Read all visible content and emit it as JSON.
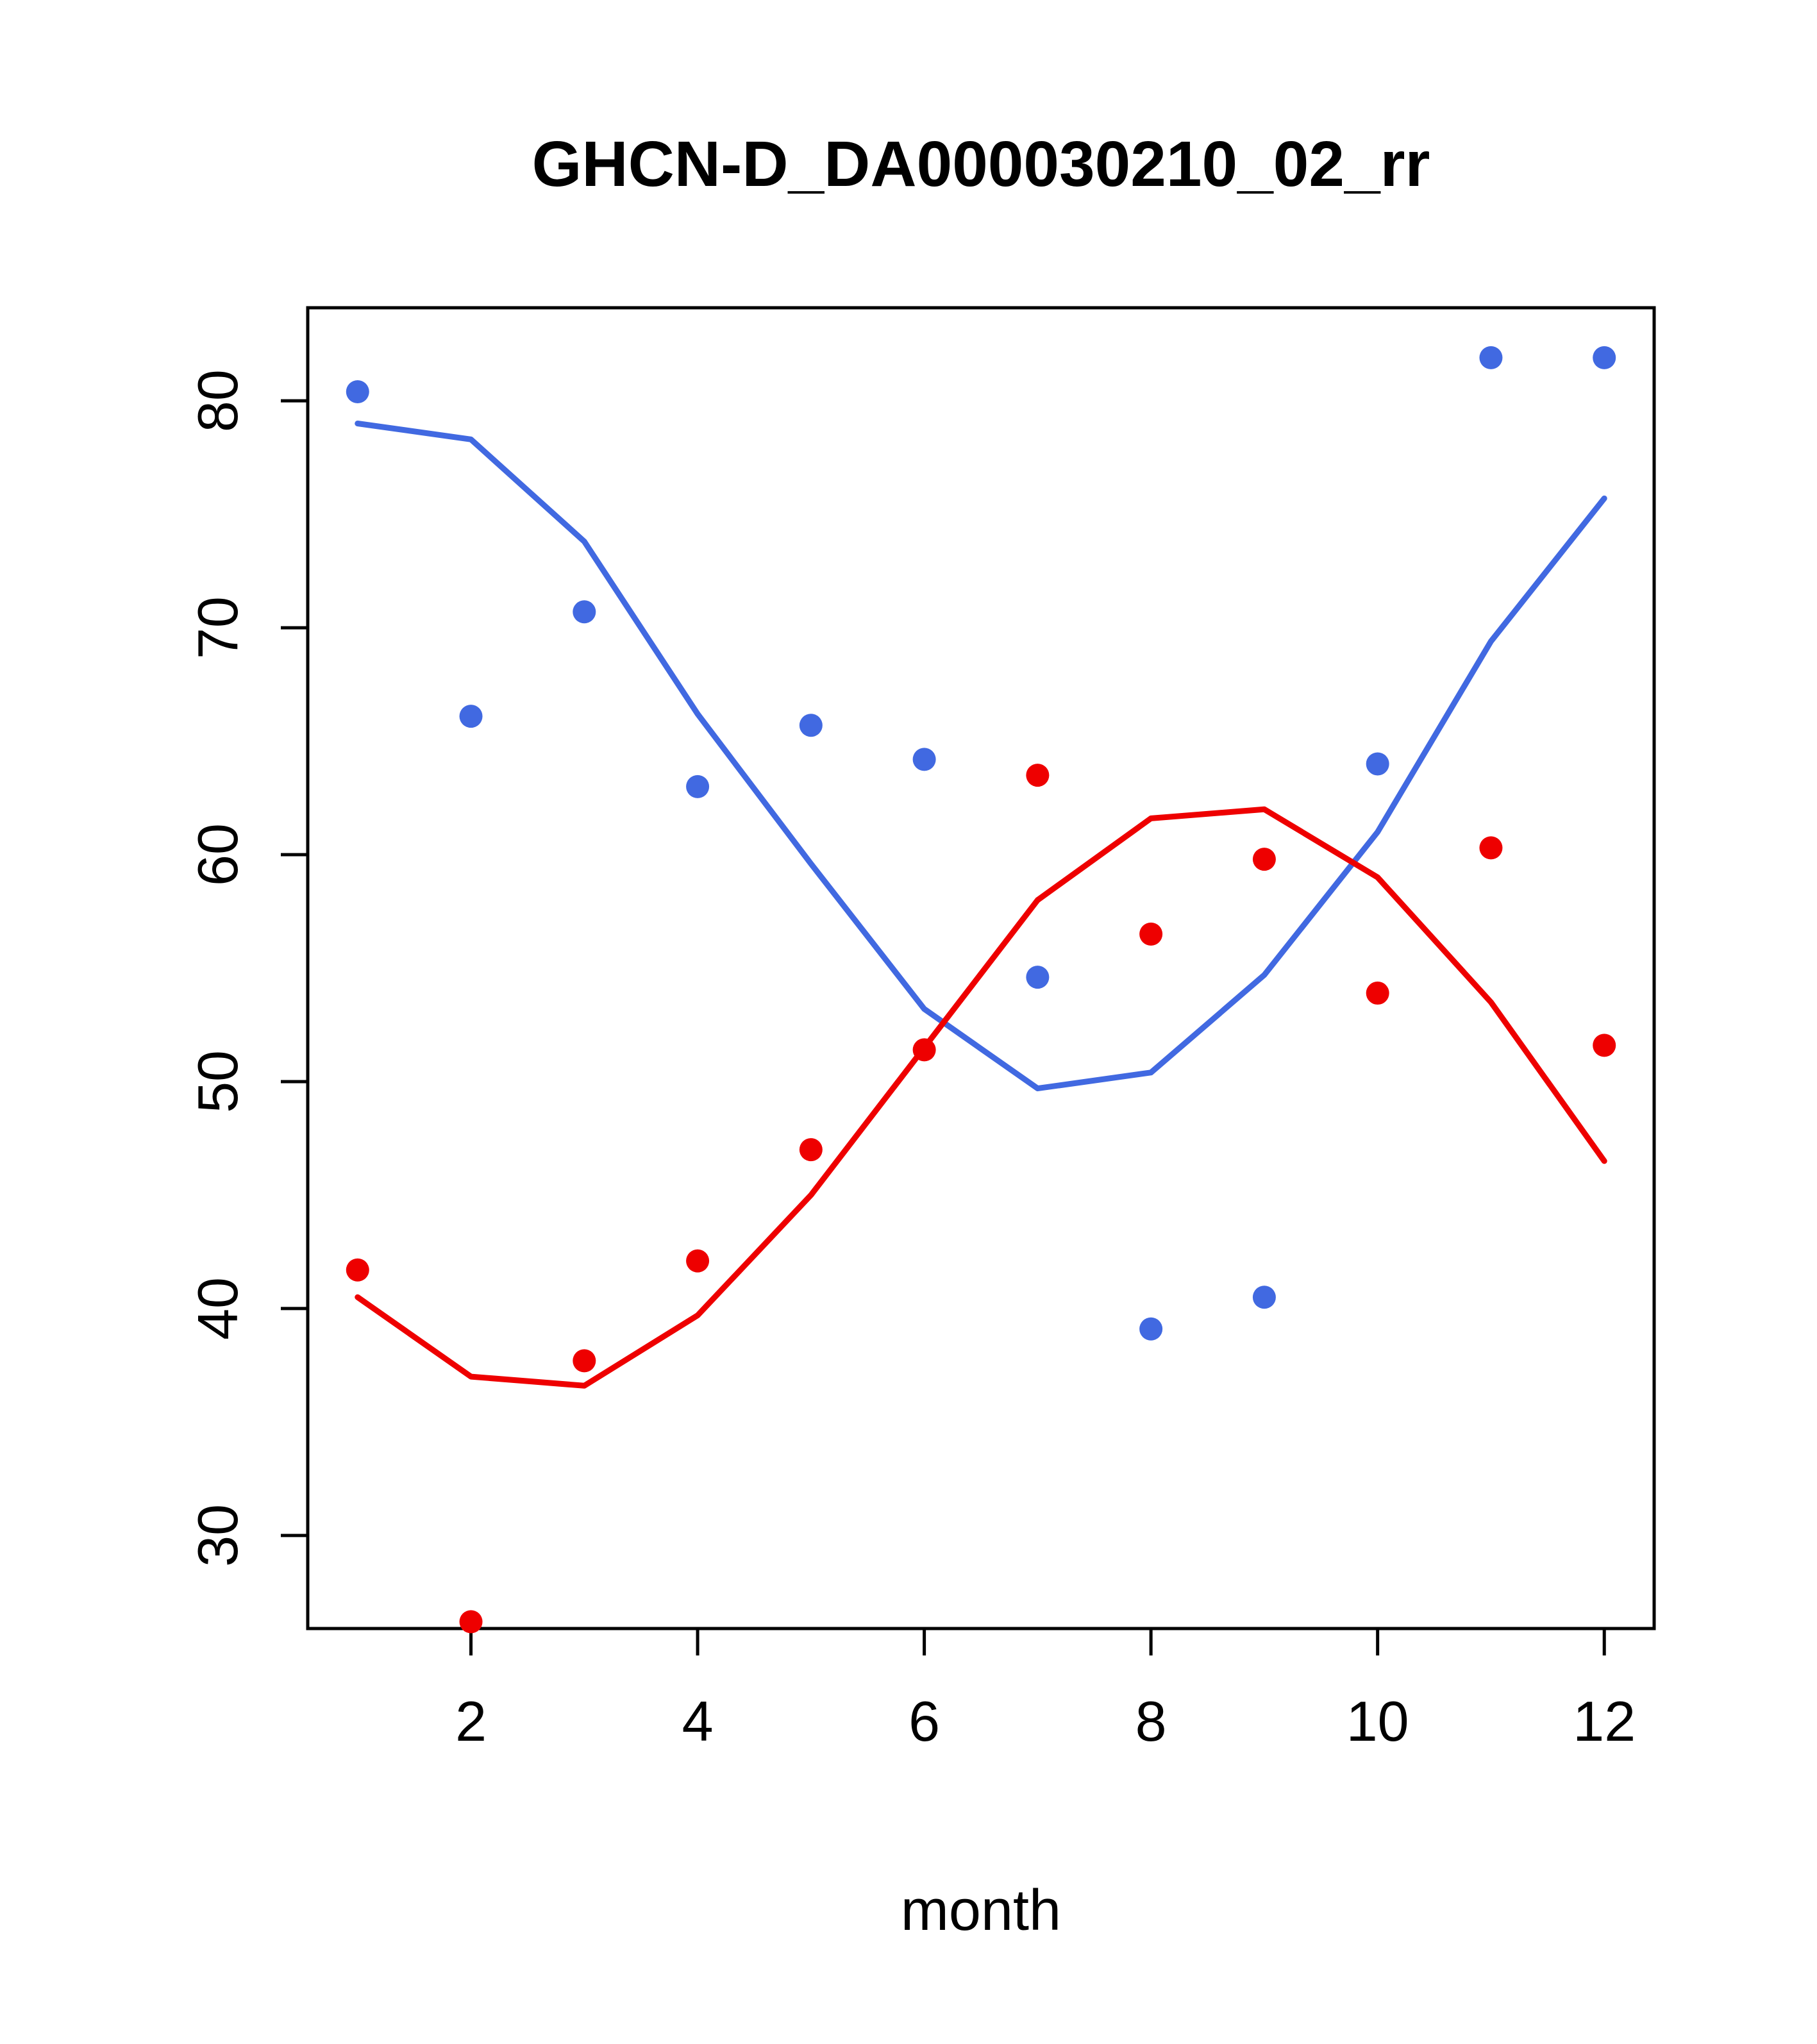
{
  "chart_data": {
    "type": "scatter",
    "title": "GHCN-D_DA000030210_02_rr",
    "xlabel": "month",
    "ylabel": "",
    "x": [
      1,
      2,
      3,
      4,
      5,
      6,
      7,
      8,
      9,
      10,
      11,
      12
    ],
    "xlim": [
      0.56,
      12.44
    ],
    "ylim": [
      25.9,
      84.1
    ],
    "x_ticks": [
      2,
      4,
      6,
      8,
      10,
      12
    ],
    "y_ticks": [
      30,
      40,
      50,
      60,
      70,
      80
    ],
    "grid": false,
    "legend": "none",
    "colors": {
      "blue": "#4169E1",
      "red": "#EE0000",
      "axis": "#000000"
    },
    "series": [
      {
        "name": "blue-points",
        "kind": "points",
        "color": "#4169E1",
        "values": [
          80.4,
          66.1,
          70.7,
          63.0,
          65.7,
          64.2,
          54.6,
          39.1,
          40.5,
          64.0,
          81.9,
          81.9
        ]
      },
      {
        "name": "blue-trend-line",
        "kind": "line",
        "color": "#4169E1",
        "values": [
          79.0,
          78.3,
          73.8,
          66.2,
          59.6,
          53.2,
          49.7,
          50.4,
          54.7,
          61.0,
          69.4,
          75.7
        ]
      },
      {
        "name": "red-points",
        "kind": "points",
        "color": "#EE0000",
        "values": [
          41.7,
          26.2,
          37.7,
          42.1,
          47.0,
          51.4,
          63.5,
          56.5,
          59.8,
          53.9,
          60.3,
          51.6
        ]
      },
      {
        "name": "red-trend-line",
        "kind": "line",
        "color": "#EE0000",
        "values": [
          40.5,
          37.0,
          36.6,
          39.7,
          45.0,
          51.5,
          58.0,
          61.6,
          62.0,
          59.0,
          53.5,
          46.5
        ]
      }
    ]
  }
}
